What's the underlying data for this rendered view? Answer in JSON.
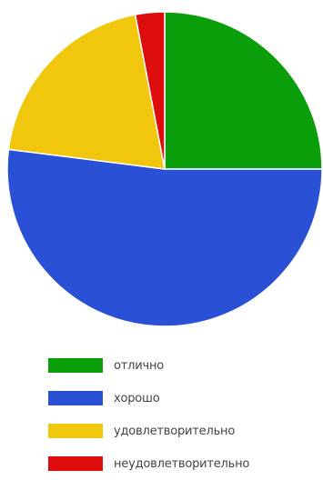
{
  "chart_data": {
    "type": "pie",
    "labels": [
      "отлично",
      "хорошо",
      "удовлетворительно",
      "неудовлетворительно"
    ],
    "values": [
      25,
      52,
      20,
      3
    ],
    "colors": [
      "#0b9e0b",
      "#2a50d6",
      "#f0c70c",
      "#dd0d0d"
    ],
    "start_angle_deg": 0,
    "direction": "clockwise",
    "legend_position": "bottom"
  }
}
